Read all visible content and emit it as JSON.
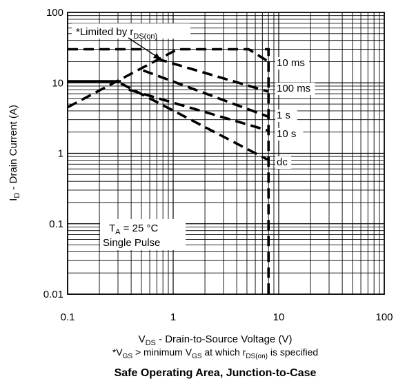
{
  "chart_data": {
    "type": "line",
    "title": "Safe Operating Area, Junction-to-Case",
    "x_scale": "log",
    "y_scale": "log",
    "xlim": [
      0.1,
      100
    ],
    "ylim": [
      0.01,
      100
    ],
    "grid": true,
    "xlabel": {
      "main": "V",
      "sub": "DS",
      "rest": " - Drain-to-Source Voltage (V)"
    },
    "ylabel": {
      "main": "I",
      "sub": "D",
      "rest": " - Drain Current (A)"
    },
    "footnote": {
      "p1": "*V",
      "s1": "GS",
      "p2": " > minimum V",
      "s2": "GS",
      "p3": " at which r",
      "s3": "DS(on)",
      "p4": " is specified"
    },
    "x_ticks": [
      {
        "value": 0.1,
        "label": "0.1"
      },
      {
        "value": 1,
        "label": "1"
      },
      {
        "value": 10,
        "label": "10"
      },
      {
        "value": 100,
        "label": "100"
      }
    ],
    "y_ticks": [
      {
        "value": 0.01,
        "label": "0.01"
      },
      {
        "value": 0.1,
        "label": "0.1"
      },
      {
        "value": 1,
        "label": "1"
      },
      {
        "value": 10,
        "label": "10"
      },
      {
        "value": 100,
        "label": "100"
      }
    ],
    "annotations": {
      "limited": {
        "main": "*Limited by r",
        "sub": "DS(on)"
      },
      "conditions": {
        "line1_a": "T",
        "line1_b": "A",
        "line1_c": " = 25 °C",
        "line2": "Single Pulse"
      }
    },
    "series": [
      {
        "label": "10 ms",
        "style": "dashed",
        "points": [
          [
            0.1,
            4.5
          ],
          [
            1.1,
            30
          ],
          [
            5.2,
            30
          ],
          [
            8,
            20
          ]
        ]
      },
      {
        "label": "100 ms",
        "style": "dashed",
        "points": [
          [
            0.7,
            22
          ],
          [
            8,
            7.5
          ]
        ]
      },
      {
        "label": "1 s",
        "style": "dashed",
        "points": [
          [
            0.52,
            15
          ],
          [
            8,
            3.3
          ]
        ]
      },
      {
        "label": "10 s",
        "style": "dashed",
        "points": [
          [
            0.38,
            8
          ],
          [
            8,
            2.1
          ]
        ]
      },
      {
        "label": "dc",
        "style": "dashed",
        "points": [
          [
            0.32,
            9.8
          ],
          [
            8,
            0.8
          ]
        ]
      },
      {
        "label": "",
        "style": "dashed",
        "points": [
          [
            0.1,
            30
          ],
          [
            0.55,
            30
          ]
        ]
      },
      {
        "label": "",
        "style": "dashed",
        "points": [
          [
            7.4,
            30
          ],
          [
            8,
            30
          ],
          [
            8,
            0.01
          ]
        ]
      },
      {
        "label": "",
        "style": "solid",
        "points": [
          [
            0.1,
            10.5
          ],
          [
            0.32,
            10.5
          ]
        ]
      }
    ]
  }
}
